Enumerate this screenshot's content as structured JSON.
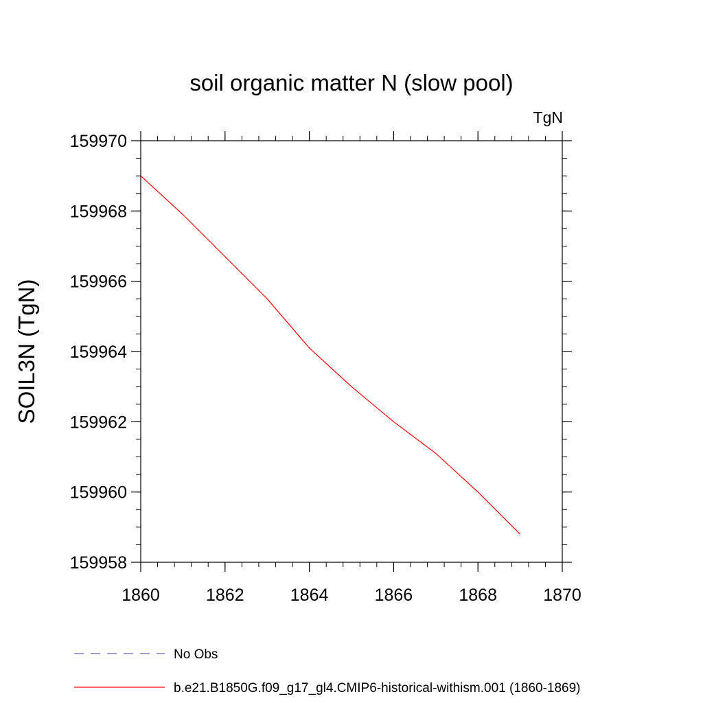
{
  "chart_data": {
    "type": "line",
    "title": "soil organic matter N (slow pool)",
    "units": "TgN",
    "xlabel": "",
    "ylabel": "SOIL3N  (TgN)",
    "xlim": [
      1860,
      1870
    ],
    "ylim": [
      159958,
      159970
    ],
    "x_ticks": [
      "1860",
      "1862",
      "1864",
      "1866",
      "1868",
      "1870"
    ],
    "y_ticks": [
      "159958",
      "159960",
      "159962",
      "159964",
      "159966",
      "159968",
      "159970"
    ],
    "grid": false,
    "legend_position": "bottom",
    "series": [
      {
        "name": "No Obs",
        "color": "#6666cc",
        "dash": "dashed",
        "x": [],
        "y": []
      },
      {
        "name": "b.e21.B1850G.f09_g17_gl4.CMIP6-historical-withism.001 (1860-1869)",
        "color": "#ff0000",
        "dash": "solid",
        "x": [
          1860,
          1861,
          1862,
          1863,
          1864,
          1865,
          1866,
          1867,
          1868,
          1869
        ],
        "y": [
          159969.0,
          159967.9,
          159966.7,
          159965.5,
          159964.1,
          159963.0,
          159962.0,
          159961.1,
          159960.0,
          159958.8
        ]
      }
    ]
  }
}
